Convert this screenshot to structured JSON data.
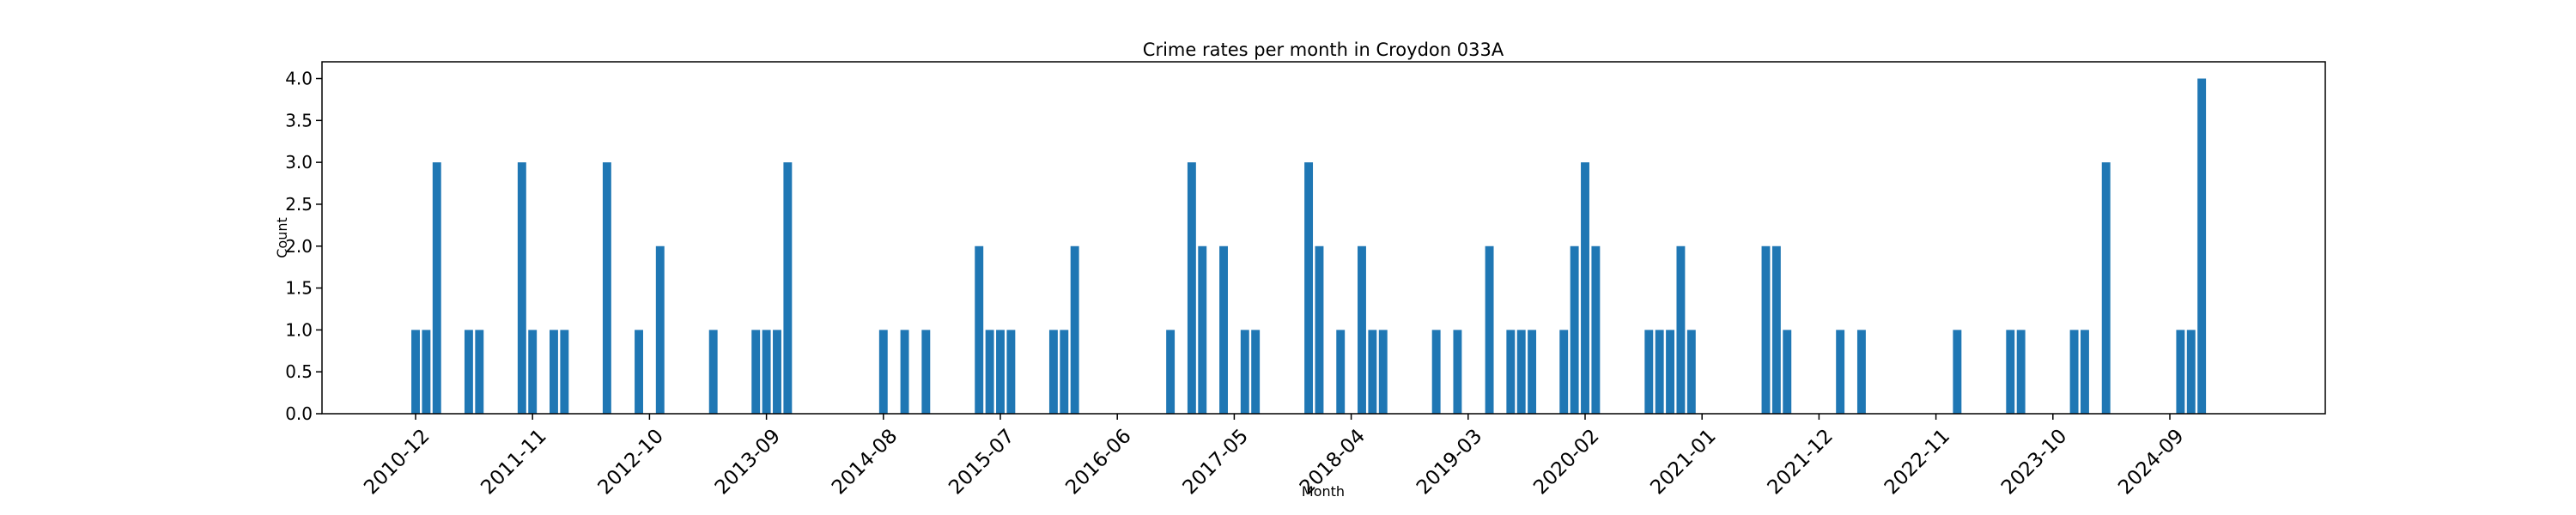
{
  "chart_data": {
    "type": "bar",
    "title": "Crime rates per month in Croydon 033A",
    "xlabel": "Month",
    "ylabel": "Count",
    "ylim": [
      0,
      4.2
    ],
    "yticks": [
      "0.0",
      "0.5",
      "1.0",
      "1.5",
      "2.0",
      "2.5",
      "3.0",
      "3.5",
      "4.0"
    ],
    "xticks": [
      "2010-12",
      "2011-11",
      "2012-10",
      "2013-09",
      "2014-08",
      "2015-07",
      "2016-06",
      "2017-05",
      "2018-04",
      "2019-03",
      "2020-02",
      "2021-01",
      "2021-12",
      "2022-11",
      "2023-10",
      "2024-09"
    ],
    "bar_color": "#1f77b4",
    "grid": false,
    "x": [
      "2010-12",
      "2011-01",
      "2011-02",
      "2011-05",
      "2011-06",
      "2011-10",
      "2011-11",
      "2012-01",
      "2012-02",
      "2012-06",
      "2012-09",
      "2012-11",
      "2013-04",
      "2013-08",
      "2013-09",
      "2013-10",
      "2013-11",
      "2014-08",
      "2014-10",
      "2014-12",
      "2015-05",
      "2015-06",
      "2015-07",
      "2015-08",
      "2015-12",
      "2016-01",
      "2016-02",
      "2016-11",
      "2017-01",
      "2017-02",
      "2017-04",
      "2017-06",
      "2017-07",
      "2017-12",
      "2018-01",
      "2018-03",
      "2018-05",
      "2018-06",
      "2018-07",
      "2018-12",
      "2019-02",
      "2019-05",
      "2019-07",
      "2019-08",
      "2019-09",
      "2019-12",
      "2020-01",
      "2020-02",
      "2020-03",
      "2020-08",
      "2020-09",
      "2020-10",
      "2020-11",
      "2020-12",
      "2021-07",
      "2021-08",
      "2021-09",
      "2022-02",
      "2022-04",
      "2023-01",
      "2023-06",
      "2023-07",
      "2023-12",
      "2024-01",
      "2024-03",
      "2024-10",
      "2024-11",
      "2024-12"
    ],
    "values": [
      1,
      1,
      3,
      1,
      1,
      3,
      1,
      1,
      1,
      3,
      1,
      2,
      1,
      1,
      1,
      1,
      3,
      1,
      1,
      1,
      2,
      1,
      1,
      1,
      1,
      1,
      2,
      1,
      3,
      2,
      2,
      1,
      1,
      3,
      2,
      1,
      2,
      1,
      1,
      1,
      1,
      2,
      1,
      1,
      1,
      1,
      2,
      3,
      2,
      1,
      1,
      1,
      2,
      1,
      2,
      2,
      1,
      1,
      1,
      1,
      1,
      1,
      1,
      1,
      3,
      1,
      1,
      4
    ]
  }
}
